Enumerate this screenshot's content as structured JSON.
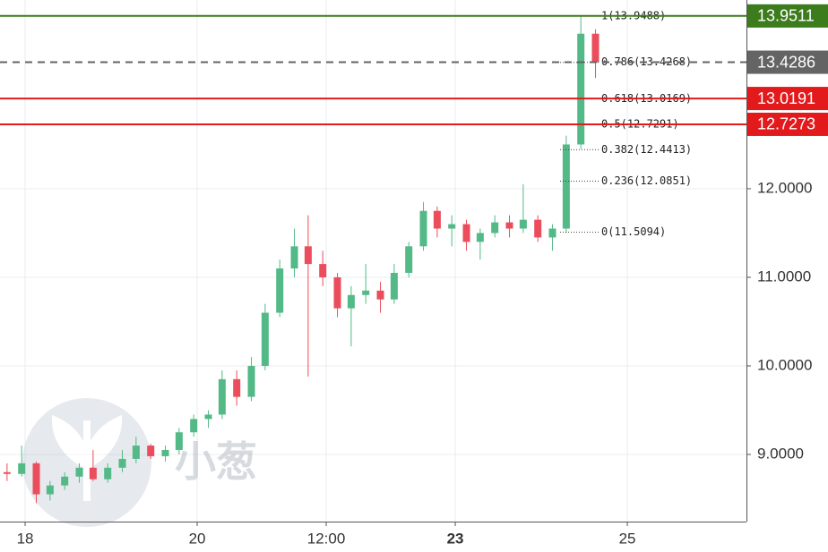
{
  "chart_data": {
    "type": "candlestick",
    "x": [
      17.79,
      17.96,
      18.13,
      18.29,
      18.46,
      18.63,
      18.79,
      18.96,
      19.13,
      19.29,
      19.46,
      19.63,
      19.79,
      19.96,
      20.13,
      20.29,
      20.46,
      20.63,
      20.79,
      20.96,
      21.13,
      21.29,
      21.46,
      21.63,
      21.79,
      21.96,
      22.13,
      22.29,
      22.46,
      22.63,
      22.79,
      22.96,
      23.13,
      23.29,
      23.46,
      23.63,
      23.79,
      23.96,
      24.13,
      24.29,
      24.46,
      24.63
    ],
    "open": [
      8.8,
      8.78,
      8.9,
      8.55,
      8.65,
      8.75,
      8.85,
      8.72,
      8.85,
      8.95,
      9.1,
      8.98,
      9.05,
      9.25,
      9.4,
      9.45,
      9.85,
      9.65,
      10.0,
      10.6,
      11.1,
      11.35,
      11.15,
      11.0,
      10.65,
      10.8,
      10.85,
      10.75,
      11.05,
      11.35,
      11.75,
      11.55,
      11.6,
      11.4,
      11.5,
      11.62,
      11.55,
      11.65,
      11.45,
      11.55,
      12.5,
      13.75
    ],
    "high": [
      8.9,
      9.1,
      8.92,
      8.7,
      8.8,
      8.9,
      9.05,
      8.9,
      9.05,
      9.2,
      9.12,
      9.1,
      9.3,
      9.45,
      9.5,
      9.95,
      9.95,
      10.1,
      10.7,
      11.2,
      11.55,
      11.7,
      11.3,
      11.05,
      10.9,
      11.15,
      10.95,
      11.15,
      11.4,
      11.85,
      11.8,
      11.7,
      11.65,
      11.55,
      11.7,
      11.7,
      12.05,
      11.7,
      11.6,
      12.6,
      13.95,
      13.8
    ],
    "low": [
      8.7,
      8.75,
      8.45,
      8.48,
      8.6,
      8.68,
      8.7,
      8.68,
      8.8,
      8.9,
      8.95,
      8.92,
      9.0,
      9.2,
      9.3,
      9.4,
      9.55,
      9.6,
      9.95,
      10.55,
      11.0,
      9.88,
      10.9,
      10.55,
      10.22,
      10.7,
      10.6,
      10.7,
      11.0,
      11.3,
      11.45,
      11.35,
      11.3,
      11.2,
      11.45,
      11.45,
      11.5,
      11.4,
      11.3,
      11.5,
      12.45,
      13.25
    ],
    "close": [
      8.78,
      8.9,
      8.55,
      8.65,
      8.75,
      8.85,
      8.72,
      8.85,
      8.95,
      9.1,
      8.98,
      9.05,
      9.25,
      9.4,
      9.45,
      9.85,
      9.65,
      10.0,
      10.6,
      11.1,
      11.35,
      11.15,
      11.0,
      10.65,
      10.8,
      10.85,
      10.75,
      11.05,
      11.35,
      11.75,
      11.55,
      11.6,
      11.4,
      11.5,
      11.62,
      11.55,
      11.65,
      11.45,
      11.55,
      12.5,
      13.75,
      13.43
    ],
    "up_color": "#53b987",
    "down_color": "#eb4d5c",
    "xlim": [
      17.708,
      26.385
    ],
    "xticks": [
      {
        "value": 18,
        "label": "18"
      },
      {
        "value": 20,
        "label": "20"
      },
      {
        "value": 21.5,
        "label": "12:00"
      },
      {
        "value": 23,
        "label": "23"
      },
      {
        "value": 25,
        "label": "25"
      }
    ],
    "ylim": [
      8.242,
      14.131
    ],
    "yticks": [
      {
        "value": 9,
        "label": "9.0000"
      },
      {
        "value": 10,
        "label": "10.0000"
      },
      {
        "value": 11,
        "label": "11.0000"
      },
      {
        "value": 12,
        "label": "12.0000"
      }
    ],
    "grid": true,
    "levels": [
      {
        "value": 13.9511,
        "color": "#3c7c1c",
        "dashed": false
      },
      {
        "value": 13.4286,
        "color": "#646464",
        "dashed": true
      },
      {
        "value": 13.0191,
        "color": "#e31a1c",
        "dashed": false
      },
      {
        "value": 12.7273,
        "color": "#e31a1c",
        "dashed": false
      }
    ],
    "fib_levels": [
      {
        "value": 13.9488,
        "label": "1(13.9488)"
      },
      {
        "value": 13.4268,
        "label": "0.786(13.4268)"
      },
      {
        "value": 13.0169,
        "label": "0.618(13.0169)"
      },
      {
        "value": 12.7291,
        "label": "0.5(12.7291)"
      },
      {
        "value": 12.4413,
        "label": "0.382(12.4413)"
      },
      {
        "value": 12.0851,
        "label": "0.236(12.0851)"
      },
      {
        "value": 11.5094,
        "label": "0(11.5094)"
      }
    ],
    "watermark": "小葱"
  }
}
